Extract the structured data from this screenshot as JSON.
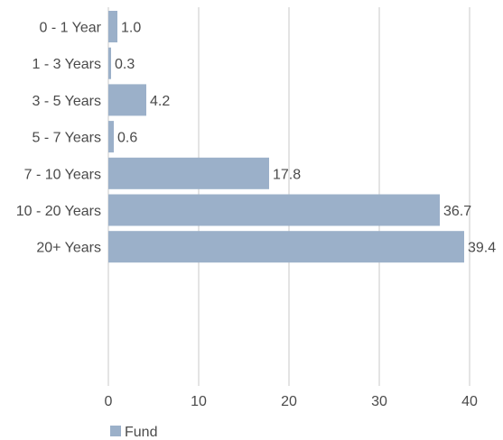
{
  "chart_data": {
    "type": "bar",
    "orientation": "horizontal",
    "categories": [
      "0 - 1 Year",
      "1 - 3 Years",
      "3 - 5 Years",
      "5 - 7 Years",
      "7 - 10 Years",
      "10 - 20 Years",
      "20+ Years"
    ],
    "series": [
      {
        "name": "Fund",
        "values": [
          1.0,
          0.3,
          4.2,
          0.6,
          17.8,
          36.7,
          39.4
        ]
      }
    ],
    "value_labels": [
      "1.0",
      "0.3",
      "4.2",
      "0.6",
      "17.8",
      "36.7",
      "39.4"
    ],
    "xlim": [
      0,
      40
    ],
    "xticks": [
      "0",
      "10",
      "20",
      "30",
      "40"
    ],
    "grid": "vertical",
    "legend_position": "bottom-left",
    "colors": {
      "bar": "#9bb0c9",
      "grid": "#c8c8c8",
      "text": "#4a4a4a"
    }
  }
}
